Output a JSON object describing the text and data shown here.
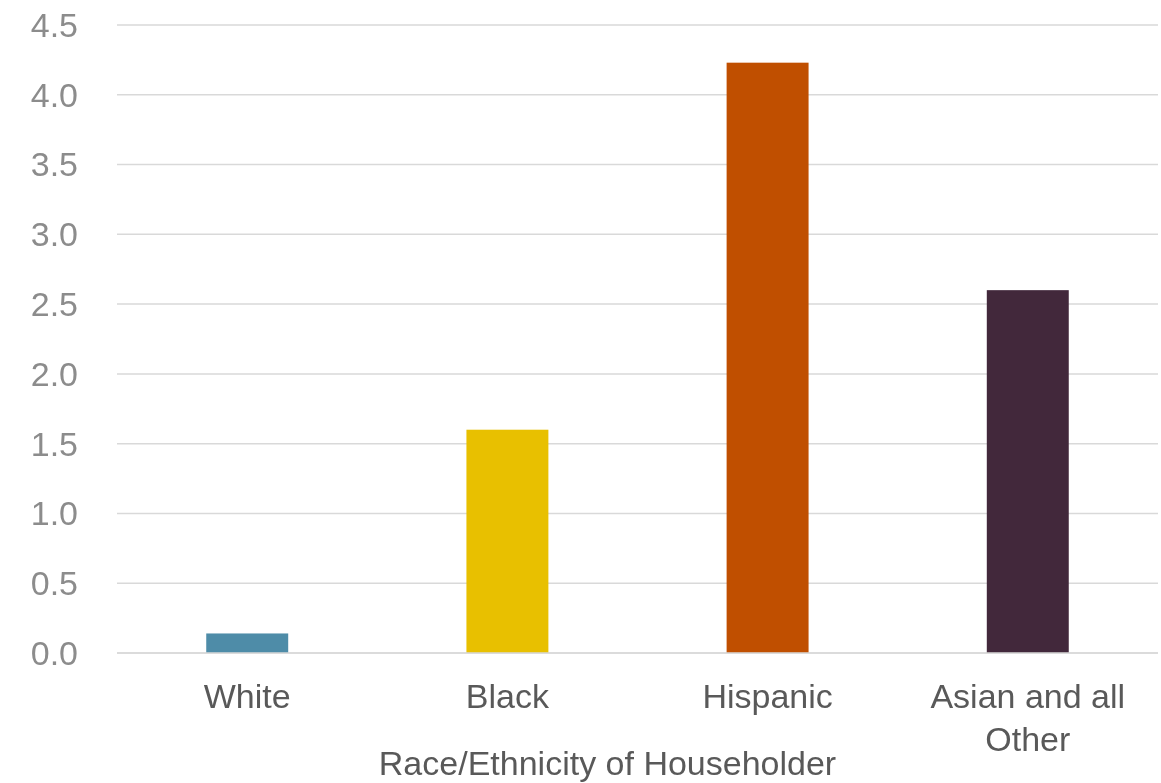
{
  "chart_data": {
    "type": "bar",
    "xlabel": "Race/Ethnicity of Householder",
    "categories": [
      "White",
      "Black",
      "Hispanic",
      "Asian and all Other"
    ],
    "values": [
      0.14,
      1.6,
      4.23,
      2.6
    ],
    "colors": [
      "#4e8ca8",
      "#e8c000",
      "#c04f00",
      "#42283b"
    ],
    "ylim": [
      0,
      4.5
    ],
    "yticks": [
      {
        "value": 0,
        "label": "0.0"
      },
      {
        "value": 0.5,
        "label": "0.5"
      },
      {
        "value": 1,
        "label": "1.0"
      },
      {
        "value": 1.5,
        "label": "1.5"
      },
      {
        "value": 2,
        "label": "2.0"
      },
      {
        "value": 2.5,
        "label": "2.5"
      },
      {
        "value": 3,
        "label": "3.0"
      },
      {
        "value": 3.5,
        "label": "3.5"
      },
      {
        "value": 4,
        "label": "4.0"
      },
      {
        "value": 4.5,
        "label": "4.5"
      }
    ],
    "grid": "y"
  }
}
